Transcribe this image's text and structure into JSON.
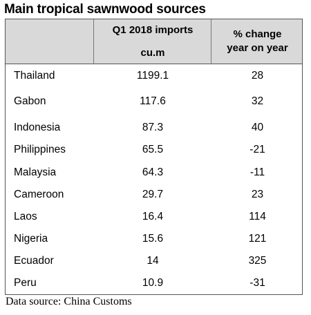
{
  "title": "Main tropical sawnwood sources",
  "header": {
    "imports_line1": "Q1 2018 imports",
    "imports_line2": "cu.m",
    "change_line1": "% change",
    "change_line2": "year on year"
  },
  "rows": [
    {
      "country": "Thailand",
      "imports": "1199.1",
      "change": "28"
    },
    {
      "country": "Gabon",
      "imports": "117.6",
      "change": "32"
    },
    {
      "country": "Indonesia",
      "imports": "87.3",
      "change": "40"
    },
    {
      "country": "Philippines",
      "imports": "65.5",
      "change": "-21"
    },
    {
      "country": "Malaysia",
      "imports": "64.3",
      "change": "-11"
    },
    {
      "country": "Cameroon",
      "imports": "29.7",
      "change": "23"
    },
    {
      "country": "Laos",
      "imports": "16.4",
      "change": "114"
    },
    {
      "country": "Nigeria",
      "imports": "15.6",
      "change": "121"
    },
    {
      "country": "Ecuador",
      "imports": "14",
      "change": "325"
    },
    {
      "country": "Peru",
      "imports": "10.9",
      "change": "-31"
    }
  ],
  "source": "Data source: China Customs"
}
